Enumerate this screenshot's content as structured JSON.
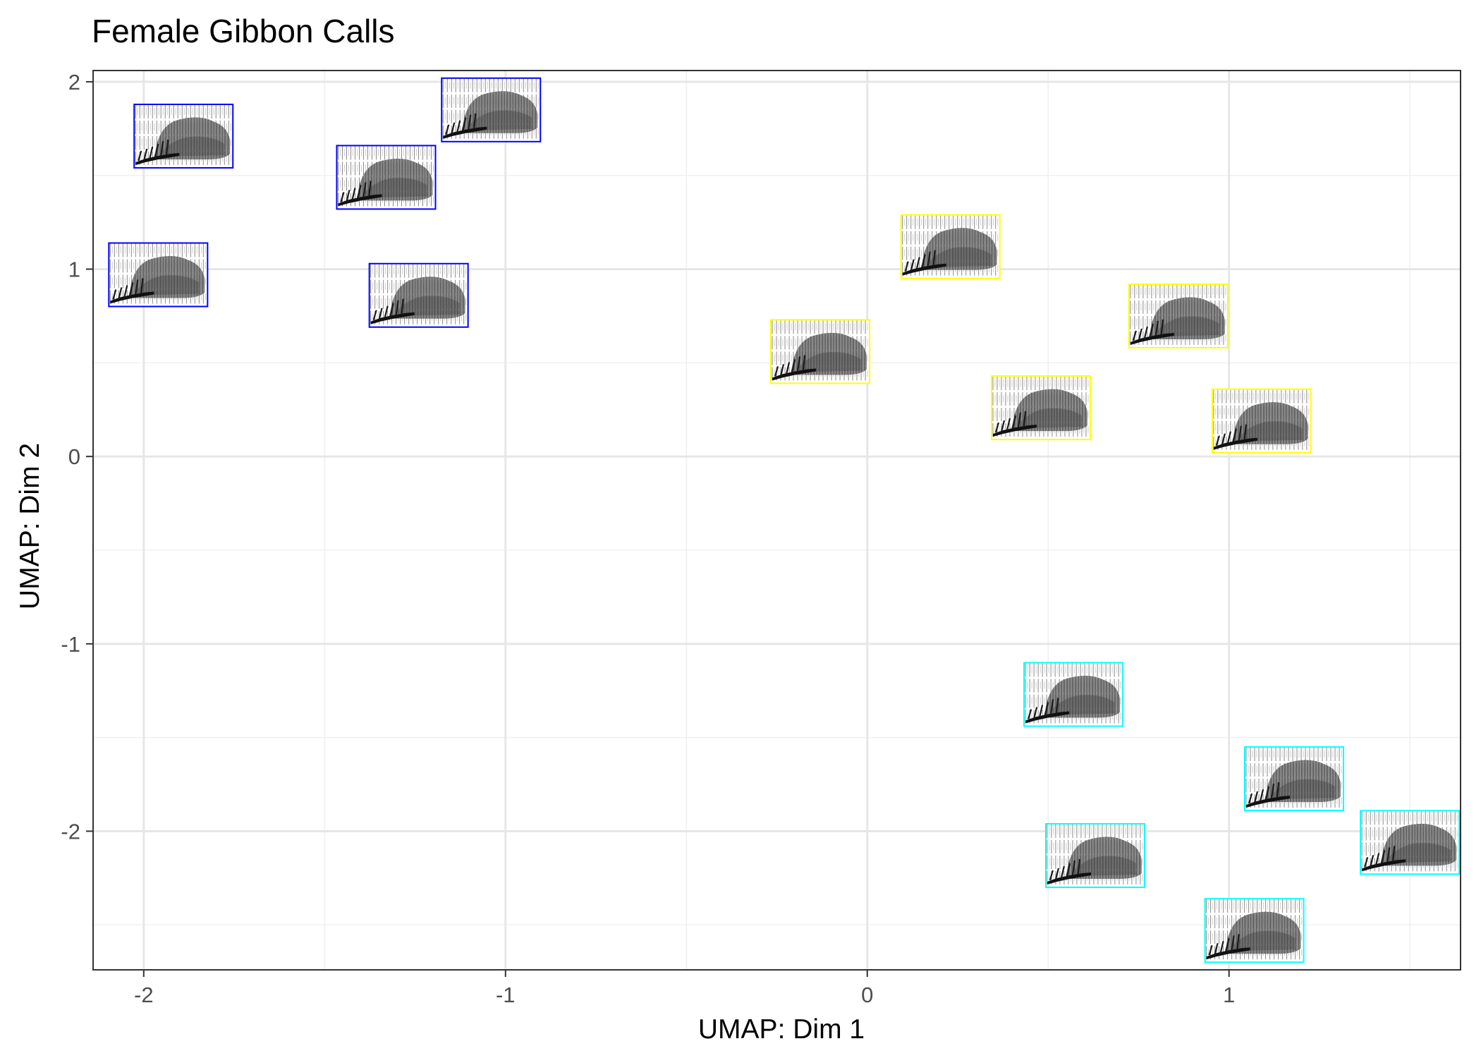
{
  "chart_data": {
    "type": "scatter",
    "title": "Female Gibbon Calls",
    "xlabel": "UMAP: Dim 1",
    "ylabel": "UMAP: Dim 2",
    "xlim": [
      -2.14,
      1.64
    ],
    "ylim": [
      -2.74,
      2.06
    ],
    "x_ticks": [
      -2,
      -1,
      0,
      1
    ],
    "x_tick_labels": [
      "-2",
      "-1",
      "0",
      "1"
    ],
    "y_ticks": [
      -2,
      -1,
      0,
      1,
      2
    ],
    "y_tick_labels": [
      "-2",
      "-1",
      "0",
      "1",
      "2"
    ],
    "grid": true,
    "marker": "spectrogram-thumbnail",
    "series": [
      {
        "color": "#0000ff",
        "points": [
          {
            "x": -1.89,
            "y": 1.71
          },
          {
            "x": -1.04,
            "y": 1.85
          },
          {
            "x": -1.33,
            "y": 1.49
          },
          {
            "x": -1.96,
            "y": 0.97
          },
          {
            "x": -1.24,
            "y": 0.86
          }
        ]
      },
      {
        "color": "#ffff00",
        "points": [
          {
            "x": 0.23,
            "y": 1.12
          },
          {
            "x": -0.13,
            "y": 0.56
          },
          {
            "x": 0.86,
            "y": 0.75
          },
          {
            "x": 0.48,
            "y": 0.26
          },
          {
            "x": 1.09,
            "y": 0.19
          }
        ]
      },
      {
        "color": "#00ffff",
        "points": [
          {
            "x": 0.57,
            "y": -1.27
          },
          {
            "x": 1.18,
            "y": -1.72
          },
          {
            "x": 0.63,
            "y": -2.13
          },
          {
            "x": 1.5,
            "y": -2.06
          },
          {
            "x": 1.07,
            "y": -2.53
          }
        ]
      }
    ]
  }
}
